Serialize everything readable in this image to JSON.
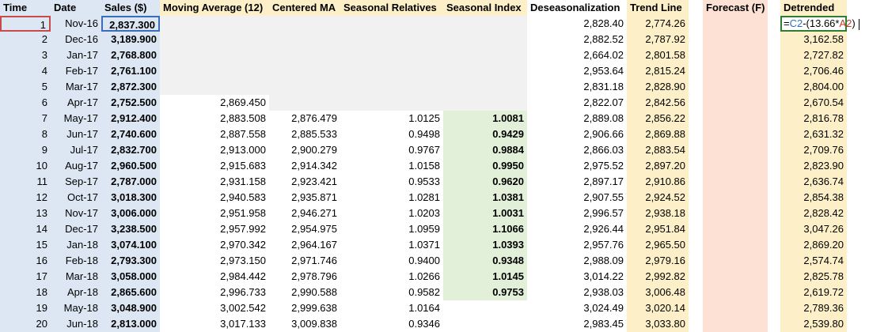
{
  "headers": [
    "Time",
    "Date",
    "Sales ($)",
    "Moving Average (12)",
    "Centered MA",
    "Seasonal Relatives",
    "Seasonal Index",
    "Deseasonalization",
    "Trend Line",
    "Forecast (F)",
    "Detrended"
  ],
  "rows": [
    {
      "time": "1",
      "date": "Nov-16",
      "sales": "2,837.300",
      "ma": "",
      "cma": "",
      "sr": "",
      "si": "",
      "des": "2,828.40",
      "trend": "2,774.26",
      "det": ""
    },
    {
      "time": "2",
      "date": "Dec-16",
      "sales": "3,189.900",
      "ma": "",
      "cma": "",
      "sr": "",
      "si": "",
      "des": "2,882.52",
      "trend": "2,787.92",
      "det": "3,162.58"
    },
    {
      "time": "3",
      "date": "Jan-17",
      "sales": "2,768.800",
      "ma": "",
      "cma": "",
      "sr": "",
      "si": "",
      "des": "2,664.02",
      "trend": "2,801.58",
      "det": "2,727.82"
    },
    {
      "time": "4",
      "date": "Feb-17",
      "sales": "2,761.100",
      "ma": "",
      "cma": "",
      "sr": "",
      "si": "",
      "des": "2,953.64",
      "trend": "2,815.24",
      "det": "2,706.46"
    },
    {
      "time": "5",
      "date": "Mar-17",
      "sales": "2,872.300",
      "ma": "",
      "cma": "",
      "sr": "",
      "si": "",
      "des": "2,831.18",
      "trend": "2,828.90",
      "det": "2,804.00"
    },
    {
      "time": "6",
      "date": "Apr-17",
      "sales": "2,752.500",
      "ma": "2,869.450",
      "cma": "",
      "sr": "",
      "si": "",
      "des": "2,822.07",
      "trend": "2,842.56",
      "det": "2,670.54"
    },
    {
      "time": "7",
      "date": "May-17",
      "sales": "2,912.400",
      "ma": "2,883.508",
      "cma": "2,876.479",
      "sr": "1.0125",
      "si": "1.0081",
      "des": "2,889.08",
      "trend": "2,856.22",
      "det": "2,816.78"
    },
    {
      "time": "8",
      "date": "Jun-17",
      "sales": "2,740.600",
      "ma": "2,887.558",
      "cma": "2,885.533",
      "sr": "0.9498",
      "si": "0.9429",
      "des": "2,906.66",
      "trend": "2,869.88",
      "det": "2,631.32"
    },
    {
      "time": "9",
      "date": "Jul-17",
      "sales": "2,832.700",
      "ma": "2,913.000",
      "cma": "2,900.279",
      "sr": "0.9767",
      "si": "0.9884",
      "des": "2,866.03",
      "trend": "2,883.54",
      "det": "2,709.76"
    },
    {
      "time": "10",
      "date": "Aug-17",
      "sales": "2,960.500",
      "ma": "2,915.683",
      "cma": "2,914.342",
      "sr": "1.0158",
      "si": "0.9950",
      "des": "2,975.52",
      "trend": "2,897.20",
      "det": "2,823.90"
    },
    {
      "time": "11",
      "date": "Sep-17",
      "sales": "2,787.000",
      "ma": "2,931.158",
      "cma": "2,923.421",
      "sr": "0.9533",
      "si": "0.9620",
      "des": "2,897.17",
      "trend": "2,910.86",
      "det": "2,636.74"
    },
    {
      "time": "12",
      "date": "Oct-17",
      "sales": "3,018.300",
      "ma": "2,940.583",
      "cma": "2,935.871",
      "sr": "1.0281",
      "si": "1.0381",
      "des": "2,907.55",
      "trend": "2,924.52",
      "det": "2,854.38"
    },
    {
      "time": "13",
      "date": "Nov-17",
      "sales": "3,006.000",
      "ma": "2,951.958",
      "cma": "2,946.271",
      "sr": "1.0203",
      "si": "1.0031",
      "des": "2,996.57",
      "trend": "2,938.18",
      "det": "2,828.42"
    },
    {
      "time": "14",
      "date": "Dec-17",
      "sales": "3,238.500",
      "ma": "2,957.992",
      "cma": "2,954.975",
      "sr": "1.0959",
      "si": "1.1066",
      "des": "2,926.44",
      "trend": "2,951.84",
      "det": "3,047.26"
    },
    {
      "time": "15",
      "date": "Jan-18",
      "sales": "3,074.100",
      "ma": "2,970.342",
      "cma": "2,964.167",
      "sr": "1.0371",
      "si": "1.0393",
      "des": "2,957.76",
      "trend": "2,965.50",
      "det": "2,869.20"
    },
    {
      "time": "16",
      "date": "Feb-18",
      "sales": "2,793.300",
      "ma": "2,973.150",
      "cma": "2,971.746",
      "sr": "0.9400",
      "si": "0.9348",
      "des": "2,988.09",
      "trend": "2,979.16",
      "det": "2,574.74"
    },
    {
      "time": "17",
      "date": "Mar-18",
      "sales": "3,058.000",
      "ma": "2,984.442",
      "cma": "2,978.796",
      "sr": "1.0266",
      "si": "1.0145",
      "des": "3,014.22",
      "trend": "2,992.82",
      "det": "2,825.78"
    },
    {
      "time": "18",
      "date": "Apr-18",
      "sales": "2,865.600",
      "ma": "2,996.733",
      "cma": "2,990.588",
      "sr": "0.9582",
      "si": "0.9753",
      "des": "2,938.03",
      "trend": "3,006.48",
      "det": "2,619.72"
    },
    {
      "time": "19",
      "date": "May-18",
      "sales": "3,048.900",
      "ma": "3,002.542",
      "cma": "2,999.638",
      "sr": "1.0164",
      "si": "",
      "des": "3,024.49",
      "trend": "3,020.14",
      "det": "2,789.36"
    },
    {
      "time": "20",
      "date": "Jun-18",
      "sales": "2,813.000",
      "ma": "3,017.133",
      "cma": "3,009.838",
      "sr": "0.9346",
      "si": "",
      "des": "2,983.45",
      "trend": "3,033.80",
      "det": "2,539.80"
    }
  ],
  "editing_formula": {
    "prefix": "=",
    "ref1": "C2",
    "op1": "-(13.66*",
    "ref2": "A2",
    "op2": ")"
  },
  "colors": {
    "blue": "#dde7f4",
    "yellow": "#fdf0c8",
    "peach": "#fce1d4",
    "gray": "#f1f1f1",
    "green": "#e2efd9"
  }
}
